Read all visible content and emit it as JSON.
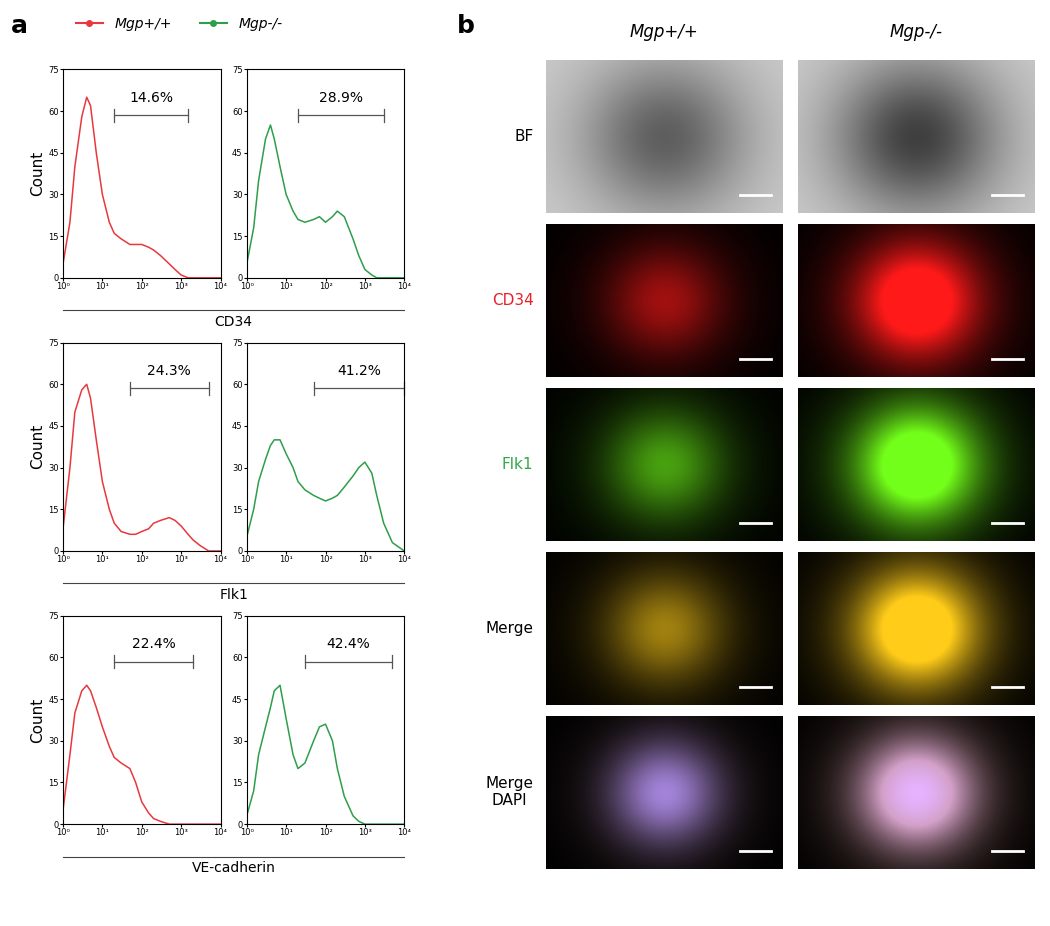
{
  "panel_labels": [
    "a",
    "b"
  ],
  "chart_data": [
    {
      "type": "line",
      "log": "x",
      "legend": "upper left",
      "x_label": "CD34",
      "y_label": "Count",
      "x": [
        1,
        1.5,
        2,
        3,
        4,
        5,
        7,
        10,
        15,
        20,
        30,
        50,
        70,
        100,
        150,
        200,
        300,
        500,
        700,
        1000,
        1500,
        2000,
        3000,
        5000,
        10000
      ],
      "series": [
        {
          "name": "Mgp+/+",
          "color": "#e8383d",
          "values": [
            5,
            20,
            40,
            58,
            65,
            62,
            45,
            30,
            20,
            16,
            14,
            12,
            12,
            12,
            11,
            10,
            8,
            5,
            3,
            1,
            0,
            0,
            0,
            0,
            0
          ]
        }
      ],
      "xlim": [
        1,
        10000
      ],
      "xticks": [
        {
          "value": 1,
          "label": "10⁰"
        },
        {
          "value": 10,
          "label": "10¹"
        },
        {
          "value": 100,
          "label": "10²"
        },
        {
          "value": 1000,
          "label": "10³"
        },
        {
          "value": 10000,
          "label": "10⁴"
        }
      ],
      "ylim": [
        0,
        75
      ],
      "yticks": [
        0,
        15,
        30,
        45,
        60,
        75
      ],
      "gate": {
        "value": 14.6,
        "label": "14.6%",
        "range": [
          20,
          1500
        ]
      }
    },
    {
      "type": "line",
      "log": "x",
      "x": [
        1,
        1.5,
        2,
        3,
        4,
        5,
        7,
        10,
        15,
        20,
        30,
        50,
        70,
        100,
        150,
        200,
        300,
        500,
        700,
        1000,
        1500,
        2000,
        3000,
        5000,
        10000
      ],
      "series": [
        {
          "name": "Mgp-/-",
          "color": "#2e9e4a",
          "values": [
            5,
            18,
            35,
            50,
            55,
            50,
            40,
            30,
            24,
            21,
            20,
            21,
            22,
            20,
            22,
            24,
            22,
            14,
            8,
            3,
            1,
            0,
            0,
            0,
            0
          ]
        }
      ],
      "xlim": [
        1,
        10000
      ],
      "xticks": [
        {
          "value": 1,
          "label": "10⁰"
        },
        {
          "value": 10,
          "label": "10¹"
        },
        {
          "value": 100,
          "label": "10²"
        },
        {
          "value": 1000,
          "label": "10³"
        },
        {
          "value": 10000,
          "label": "10⁴"
        }
      ],
      "ylim": [
        0,
        75
      ],
      "yticks": [
        0,
        15,
        30,
        45,
        60,
        75
      ],
      "gate": {
        "value": 28.9,
        "label": "28.9%",
        "range": [
          20,
          3000
        ]
      }
    },
    {
      "type": "line",
      "log": "x",
      "x_label": "Flk1",
      "y_label": "Count",
      "x": [
        1,
        1.5,
        2,
        3,
        4,
        5,
        7,
        10,
        15,
        20,
        30,
        50,
        70,
        100,
        150,
        200,
        300,
        500,
        700,
        1000,
        1500,
        2000,
        3000,
        5000,
        10000
      ],
      "series": [
        {
          "name": "Mgp+/+",
          "color": "#e8383d",
          "values": [
            8,
            30,
            50,
            58,
            60,
            55,
            40,
            25,
            15,
            10,
            7,
            6,
            6,
            7,
            8,
            10,
            11,
            12,
            11,
            9,
            6,
            4,
            2,
            0,
            0
          ]
        }
      ],
      "xlim": [
        1,
        10000
      ],
      "xticks": [
        {
          "value": 1,
          "label": "10⁰"
        },
        {
          "value": 10,
          "label": "10¹"
        },
        {
          "value": 100,
          "label": "10²"
        },
        {
          "value": 1000,
          "label": "10³"
        },
        {
          "value": 10000,
          "label": "10⁴"
        }
      ],
      "ylim": [
        0,
        75
      ],
      "yticks": [
        0,
        15,
        30,
        45,
        60,
        75
      ],
      "gate": {
        "value": 24.3,
        "label": "24.3%",
        "range": [
          50,
          5000
        ]
      }
    },
    {
      "type": "line",
      "log": "x",
      "x": [
        1,
        1.5,
        2,
        3,
        4,
        5,
        7,
        10,
        15,
        20,
        30,
        50,
        70,
        100,
        150,
        200,
        300,
        500,
        700,
        1000,
        1500,
        2000,
        3000,
        5000,
        10000
      ],
      "series": [
        {
          "name": "Mgp-/-",
          "color": "#2e9e4a",
          "values": [
            5,
            15,
            25,
            33,
            38,
            40,
            40,
            35,
            30,
            25,
            22,
            20,
            19,
            18,
            19,
            20,
            23,
            27,
            30,
            32,
            28,
            20,
            10,
            3,
            0
          ]
        }
      ],
      "xlim": [
        1,
        10000
      ],
      "xticks": [
        {
          "value": 1,
          "label": "10⁰"
        },
        {
          "value": 10,
          "label": "10¹"
        },
        {
          "value": 100,
          "label": "10²"
        },
        {
          "value": 1000,
          "label": "10³"
        },
        {
          "value": 10000,
          "label": "10⁴"
        }
      ],
      "ylim": [
        0,
        75
      ],
      "yticks": [
        0,
        15,
        30,
        45,
        60,
        75
      ],
      "gate": {
        "value": 41.2,
        "label": "41.2%",
        "range": [
          50,
          10000
        ]
      }
    },
    {
      "type": "line",
      "log": "x",
      "x_label": "VE-cadherin",
      "y_label": "Count",
      "x": [
        1,
        1.5,
        2,
        3,
        4,
        5,
        7,
        10,
        15,
        20,
        30,
        50,
        70,
        100,
        150,
        200,
        300,
        500,
        700,
        1000,
        1500,
        2000,
        3000,
        5000,
        10000
      ],
      "series": [
        {
          "name": "Mgp+/+",
          "color": "#e8383d",
          "values": [
            5,
            25,
            40,
            48,
            50,
            48,
            42,
            35,
            28,
            24,
            22,
            20,
            15,
            8,
            4,
            2,
            1,
            0,
            0,
            0,
            0,
            0,
            0,
            0,
            0
          ]
        }
      ],
      "xlim": [
        1,
        10000
      ],
      "xticks": [
        {
          "value": 1,
          "label": "10⁰"
        },
        {
          "value": 10,
          "label": "10¹"
        },
        {
          "value": 100,
          "label": "10²"
        },
        {
          "value": 1000,
          "label": "10³"
        },
        {
          "value": 10000,
          "label": "10⁴"
        }
      ],
      "ylim": [
        0,
        75
      ],
      "yticks": [
        0,
        15,
        30,
        45,
        60,
        75
      ],
      "gate": {
        "value": 22.4,
        "label": "22.4%",
        "range": [
          20,
          2000
        ]
      }
    },
    {
      "type": "line",
      "log": "x",
      "x": [
        1,
        1.5,
        2,
        3,
        4,
        5,
        7,
        10,
        15,
        20,
        30,
        50,
        70,
        100,
        150,
        200,
        300,
        500,
        700,
        1000,
        1500,
        2000,
        3000,
        5000,
        10000
      ],
      "series": [
        {
          "name": "Mgp-/-",
          "color": "#2e9e4a",
          "values": [
            3,
            12,
            25,
            35,
            42,
            48,
            50,
            38,
            25,
            20,
            22,
            30,
            35,
            36,
            30,
            20,
            10,
            3,
            1,
            0,
            0,
            0,
            0,
            0,
            0
          ]
        }
      ],
      "xlim": [
        1,
        10000
      ],
      "xticks": [
        {
          "value": 1,
          "label": "10⁰"
        },
        {
          "value": 10,
          "label": "10¹"
        },
        {
          "value": 100,
          "label": "10²"
        },
        {
          "value": 1000,
          "label": "10³"
        },
        {
          "value": 10000,
          "label": "10⁴"
        }
      ],
      "ylim": [
        0,
        75
      ],
      "yticks": [
        0,
        15,
        30,
        45,
        60,
        75
      ],
      "gate": {
        "value": 42.4,
        "label": "42.4%",
        "range": [
          30,
          5000
        ]
      }
    }
  ],
  "images": {
    "columns": [
      "Mgp+/+",
      "Mgp-/-"
    ],
    "rows": [
      {
        "label": "BF",
        "color": "#000000"
      },
      {
        "label": "CD34",
        "color": "#e8202a"
      },
      {
        "label": "Flk1",
        "color": "#2ea84a"
      },
      {
        "label": "Merge",
        "color": "#000000"
      },
      {
        "label": "Merge\nDAPI",
        "color": "#000000"
      }
    ]
  }
}
